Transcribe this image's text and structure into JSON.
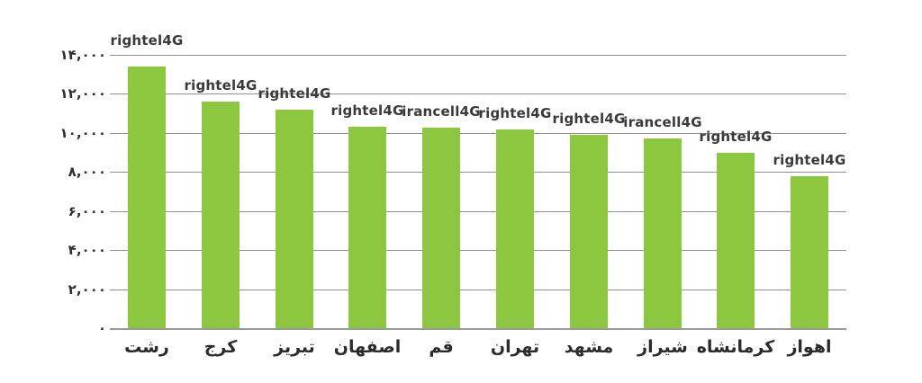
{
  "chart_data": {
    "type": "bar",
    "title": "",
    "xlabel": "",
    "ylabel": "",
    "categories": [
      "رشت",
      "کرج",
      "تبریز",
      "اصفهان",
      "قم",
      "تهران",
      "مشهد",
      "شیراز",
      "کرمانشاه",
      "اهواز"
    ],
    "values": [
      13400,
      11600,
      11200,
      10300,
      10250,
      10200,
      9900,
      9700,
      9000,
      7800
    ],
    "bar_labels": [
      "rightel4G",
      "rightel4G",
      "rightel4G",
      "rightel4G",
      "irancell4G",
      "rightel4G",
      "rightel4G",
      "irancell4G",
      "rightel4G",
      "rightel4G"
    ],
    "y_ticks": [
      {
        "value": 14000,
        "label": "۱۴,۰۰۰"
      },
      {
        "value": 12000,
        "label": "۱۲,۰۰۰"
      },
      {
        "value": 10000,
        "label": "۱۰,۰۰۰"
      },
      {
        "value": 8000,
        "label": "۸,۰۰۰"
      },
      {
        "value": 6000,
        "label": "۶,۰۰۰"
      },
      {
        "value": 4000,
        "label": "۴,۰۰۰"
      },
      {
        "value": 2000,
        "label": "۲,۰۰۰"
      },
      {
        "value": 0,
        "label": "۰"
      }
    ],
    "ylim": [
      0,
      14000
    ],
    "grid": true,
    "legend_position": "none",
    "colors": {
      "bar": "#8dc63f",
      "gridline": "#8f8f8f",
      "axis_line": "#9a9a9a",
      "text": "#2f2f2f"
    },
    "background": "#ffffff"
  }
}
